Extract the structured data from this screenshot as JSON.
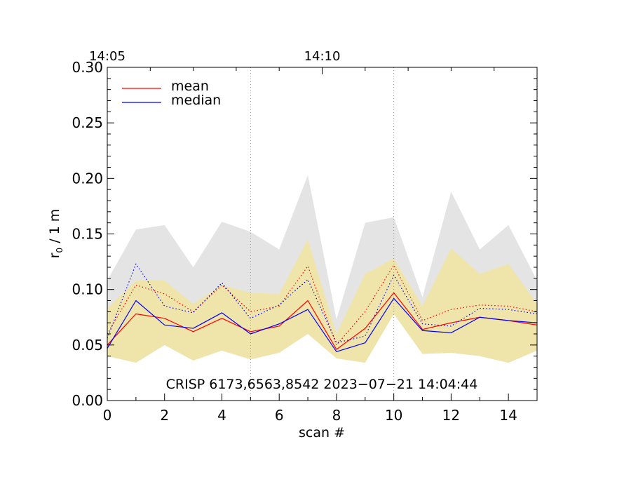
{
  "chart_data": {
    "type": "line",
    "xlabel": "scan #",
    "ylabel_main": "r",
    "ylabel_sub": "0",
    "ylabel_rest": " / 1 m",
    "xlim": [
      0,
      15
    ],
    "ylim": [
      0,
      0.3
    ],
    "xticks": [
      0,
      2,
      4,
      6,
      8,
      10,
      12,
      14
    ],
    "xtick_labels": [
      "0",
      "2",
      "4",
      "6",
      "8",
      "10",
      "12",
      "14"
    ],
    "yticks": [
      0,
      0.05,
      0.1,
      0.15,
      0.2,
      0.25,
      0.3
    ],
    "ytick_labels": [
      "0.00",
      "0.05",
      "0.10",
      "0.15",
      "0.20",
      "0.25",
      "0.30"
    ],
    "top_axis": {
      "ticks": [
        0,
        7.5
      ],
      "labels": [
        "14:05",
        "14:10"
      ]
    },
    "vertical_gridlines_x": [
      5,
      10
    ],
    "annotation": "CRISP 6173,6563,8542 2023−07−21 14:04:44",
    "legend": [
      {
        "name": "mean",
        "color": "#ff0000"
      },
      {
        "name": "median",
        "color": "#0000ff"
      }
    ],
    "x": [
      0,
      1,
      2,
      3,
      4,
      5,
      6,
      7,
      8,
      9,
      10,
      11,
      12,
      13,
      14,
      15
    ],
    "bands": [
      {
        "name": "gray range",
        "color": "#e4e4e4",
        "lower": [
          0.04,
          0.034,
          0.05,
          0.036,
          0.045,
          0.037,
          0.043,
          0.06,
          0.038,
          0.034,
          0.078,
          0.042,
          0.043,
          0.04,
          0.034,
          0.045
        ],
        "upper": [
          0.108,
          0.154,
          0.158,
          0.12,
          0.161,
          0.152,
          0.136,
          0.203,
          0.073,
          0.16,
          0.165,
          0.093,
          0.188,
          0.136,
          0.158,
          0.108
        ]
      },
      {
        "name": "yellow range",
        "color": "#efe5aa",
        "lower": [
          0.04,
          0.034,
          0.05,
          0.036,
          0.045,
          0.037,
          0.043,
          0.06,
          0.038,
          0.034,
          0.078,
          0.042,
          0.043,
          0.04,
          0.034,
          0.045
        ],
        "upper": [
          0.083,
          0.108,
          0.108,
          0.087,
          0.104,
          0.097,
          0.096,
          0.145,
          0.06,
          0.114,
          0.128,
          0.085,
          0.137,
          0.114,
          0.123,
          0.087
        ]
      }
    ],
    "series": [
      {
        "name": "mean",
        "color": "#ff0000",
        "style": "solid",
        "values": [
          0.05,
          0.078,
          0.074,
          0.062,
          0.074,
          0.062,
          0.067,
          0.09,
          0.046,
          0.065,
          0.097,
          0.064,
          0.07,
          0.075,
          0.072,
          0.068
        ]
      },
      {
        "name": "median",
        "color": "#0000ff",
        "style": "solid",
        "values": [
          0.047,
          0.09,
          0.068,
          0.065,
          0.079,
          0.06,
          0.069,
          0.082,
          0.044,
          0.052,
          0.092,
          0.063,
          0.061,
          0.075,
          0.072,
          0.07
        ]
      },
      {
        "name": "mean (dotted)",
        "color": "#ff0000",
        "style": "dotted",
        "values": [
          0.06,
          0.104,
          0.096,
          0.08,
          0.104,
          0.08,
          0.085,
          0.121,
          0.05,
          0.08,
          0.122,
          0.072,
          0.082,
          0.086,
          0.085,
          0.08
        ]
      },
      {
        "name": "median (dotted)",
        "color": "#0000ff",
        "style": "dotted",
        "values": [
          0.056,
          0.123,
          0.085,
          0.079,
          0.106,
          0.074,
          0.086,
          0.109,
          0.052,
          0.058,
          0.113,
          0.069,
          0.067,
          0.083,
          0.082,
          0.078
        ]
      }
    ]
  }
}
